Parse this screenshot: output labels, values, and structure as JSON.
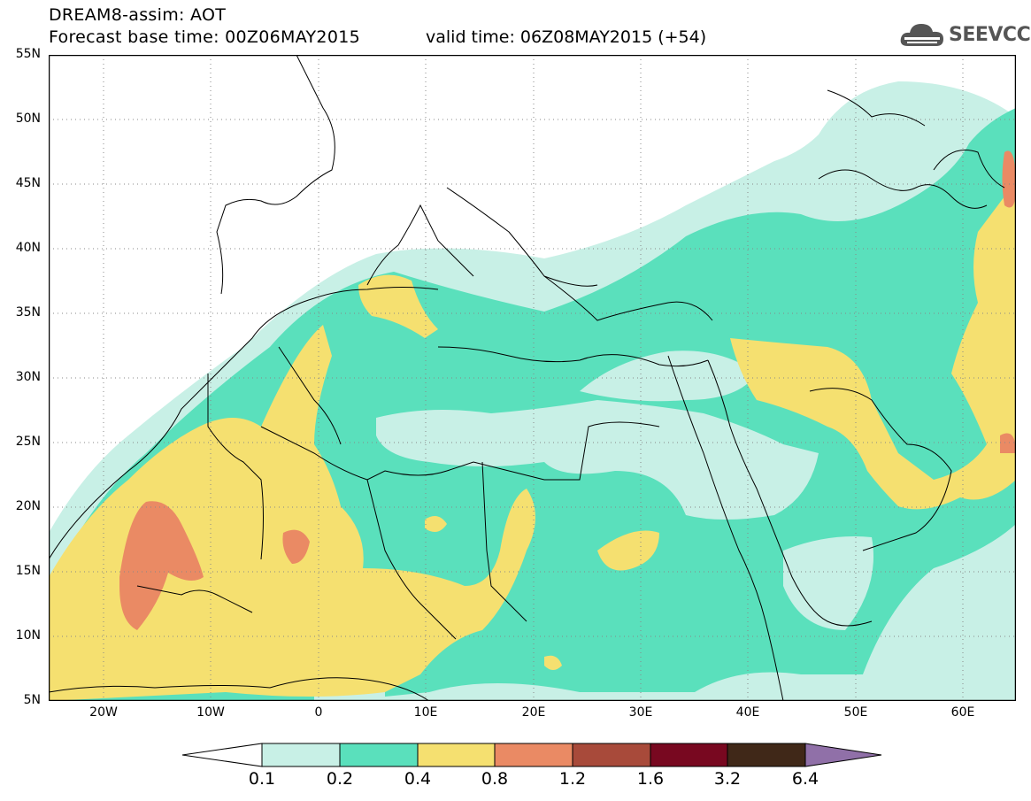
{
  "header": {
    "title_line1": "DREAM8-assim: AOT",
    "title_line2": "Forecast base time: 00Z06MAY2015",
    "valid_time": "valid time: 06Z08MAY2015 (+54)",
    "logo_text": "SEEVCCC"
  },
  "map": {
    "lon_range": [
      -25,
      65
    ],
    "lat_range": [
      5,
      55
    ],
    "lat_labels": [
      "55N",
      "50N",
      "45N",
      "40N",
      "35N",
      "30N",
      "25N",
      "20N",
      "15N",
      "10N",
      "5N"
    ],
    "lon_labels": [
      "20W",
      "10W",
      "0",
      "10E",
      "20E",
      "30E",
      "40E",
      "50E",
      "60E"
    ],
    "gridlines": "dotted"
  },
  "legend": {
    "thresholds": [
      "0.1",
      "0.2",
      "0.4",
      "0.8",
      "1.2",
      "1.6",
      "3.2",
      "6.4"
    ],
    "colors": [
      "#ffffff",
      "#c8f0e6",
      "#5ae0bc",
      "#f5e070",
      "#ea8a64",
      "#a84a3a",
      "#780820",
      "#402818",
      "#9070a8"
    ]
  }
}
